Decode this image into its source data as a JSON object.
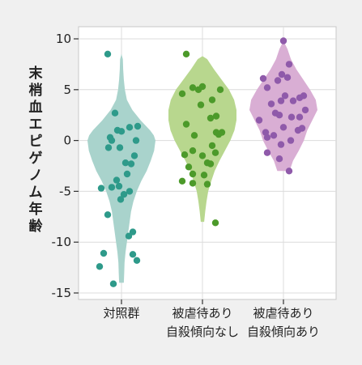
{
  "chart_data": {
    "type": "violin",
    "ylabel": "末梢血エピゲノム年齢",
    "ylim": [
      -15,
      10
    ],
    "yticks": [
      10,
      5,
      0,
      -5,
      -10,
      -15
    ],
    "ytick_labels": [
      "10",
      "5",
      "0",
      "-5",
      "-10",
      "-15"
    ],
    "grid": true,
    "categories": [
      [
        "対照群"
      ],
      [
        "被虐待あり",
        "自殺傾向なし"
      ],
      [
        "被虐待あり",
        "自殺傾向あり"
      ]
    ],
    "series": [
      {
        "violin_color": "#a9d3cc",
        "point_color": "#2e9a8a",
        "density": [
          [
            -14,
            0.07
          ],
          [
            -13,
            0.08
          ],
          [
            -12,
            0.09
          ],
          [
            -11,
            0.12
          ],
          [
            -10,
            0.16
          ],
          [
            -9,
            0.2
          ],
          [
            -8,
            0.24
          ],
          [
            -7,
            0.28
          ],
          [
            -6,
            0.35
          ],
          [
            -5,
            0.45
          ],
          [
            -4,
            0.58
          ],
          [
            -3,
            0.74
          ],
          [
            -2,
            0.86
          ],
          [
            -1,
            0.96
          ],
          [
            0,
            1.0
          ],
          [
            0.5,
            0.95
          ],
          [
            1,
            0.84
          ],
          [
            2,
            0.56
          ],
          [
            3,
            0.32
          ],
          [
            4,
            0.16
          ],
          [
            5,
            0.1
          ],
          [
            6,
            0.07
          ],
          [
            7,
            0.05
          ],
          [
            8,
            0.04
          ],
          [
            8.5,
            0.0
          ]
        ],
        "points": [
          [
            -0.17,
            8.5
          ],
          [
            -0.08,
            2.7
          ],
          [
            0.2,
            1.4
          ],
          [
            0.1,
            1.3
          ],
          [
            -0.05,
            1.0
          ],
          [
            0.0,
            0.9
          ],
          [
            -0.14,
            0.3
          ],
          [
            -0.12,
            0.0
          ],
          [
            0.18,
            0.0
          ],
          [
            -0.16,
            -0.7
          ],
          [
            -0.02,
            -0.7
          ],
          [
            0.16,
            -1.5
          ],
          [
            0.05,
            -2.2
          ],
          [
            0.12,
            -2.3
          ],
          [
            0.07,
            -3.3
          ],
          [
            -0.06,
            -3.9
          ],
          [
            -0.03,
            -4.5
          ],
          [
            -0.12,
            -4.6
          ],
          [
            -0.25,
            -4.7
          ],
          [
            0.1,
            -5.0
          ],
          [
            0.03,
            -5.3
          ],
          [
            -0.01,
            -5.8
          ],
          [
            -0.17,
            -7.3
          ],
          [
            0.14,
            -9.0
          ],
          [
            0.09,
            -9.4
          ],
          [
            -0.22,
            -11.1
          ],
          [
            0.14,
            -11.2
          ],
          [
            0.19,
            -11.8
          ],
          [
            -0.27,
            -12.4
          ],
          [
            -0.1,
            -14.1
          ]
        ]
      },
      {
        "violin_color": "#b8d78e",
        "point_color": "#4c9a2a",
        "density": [
          [
            -8,
            0.05
          ],
          [
            -7,
            0.08
          ],
          [
            -6,
            0.12
          ],
          [
            -5,
            0.17
          ],
          [
            -4,
            0.26
          ],
          [
            -3,
            0.36
          ],
          [
            -2,
            0.5
          ],
          [
            -1,
            0.66
          ],
          [
            0,
            0.82
          ],
          [
            1,
            0.94
          ],
          [
            2,
            1.0
          ],
          [
            3,
            1.0
          ],
          [
            4,
            0.93
          ],
          [
            5,
            0.78
          ],
          [
            6,
            0.56
          ],
          [
            7,
            0.34
          ],
          [
            8,
            0.14
          ],
          [
            8.3,
            0.0
          ]
        ],
        "points": [
          [
            -0.2,
            8.5
          ],
          [
            0.0,
            5.3
          ],
          [
            -0.12,
            5.2
          ],
          [
            -0.05,
            5.0
          ],
          [
            -0.25,
            4.6
          ],
          [
            0.22,
            5.0
          ],
          [
            0.12,
            4.0
          ],
          [
            -0.02,
            3.5
          ],
          [
            0.17,
            2.4
          ],
          [
            0.1,
            2.2
          ],
          [
            -0.2,
            1.6
          ],
          [
            0.24,
            0.8
          ],
          [
            0.17,
            0.8
          ],
          [
            0.2,
            0.6
          ],
          [
            -0.1,
            0.5
          ],
          [
            0.12,
            -0.5
          ],
          [
            -0.12,
            -1.0
          ],
          [
            0.16,
            -1.2
          ],
          [
            -0.22,
            -1.4
          ],
          [
            0.0,
            -1.5
          ],
          [
            0.06,
            -2.2
          ],
          [
            0.1,
            -2.3
          ],
          [
            -0.17,
            -2.6
          ],
          [
            -0.12,
            -3.3
          ],
          [
            0.02,
            -3.4
          ],
          [
            -0.25,
            -4.0
          ],
          [
            -0.12,
            -4.2
          ],
          [
            0.06,
            -4.3
          ],
          [
            0.16,
            -8.1
          ]
        ]
      },
      {
        "violin_color": "#d9aed4",
        "point_color": "#8f5aaa",
        "density": [
          [
            -3,
            0.18
          ],
          [
            -2,
            0.28
          ],
          [
            -1,
            0.45
          ],
          [
            0,
            0.6
          ],
          [
            1,
            0.7
          ],
          [
            2,
            0.85
          ],
          [
            3,
            1.0
          ],
          [
            4,
            0.95
          ],
          [
            5,
            0.78
          ],
          [
            6,
            0.58
          ],
          [
            7,
            0.38
          ],
          [
            8,
            0.22
          ],
          [
            9,
            0.12
          ],
          [
            9.8,
            0.0
          ]
        ],
        "points": [
          [
            0.0,
            9.8
          ],
          [
            0.07,
            7.5
          ],
          [
            -0.02,
            6.5
          ],
          [
            0.05,
            6.2
          ],
          [
            -0.25,
            6.1
          ],
          [
            -0.07,
            5.9
          ],
          [
            -0.2,
            5.2
          ],
          [
            0.2,
            4.2
          ],
          [
            0.25,
            4.4
          ],
          [
            0.02,
            4.4
          ],
          [
            0.12,
            3.9
          ],
          [
            -0.03,
            3.9
          ],
          [
            -0.15,
            3.6
          ],
          [
            0.27,
            3.0
          ],
          [
            -0.1,
            2.7
          ],
          [
            -0.05,
            2.5
          ],
          [
            0.1,
            2.3
          ],
          [
            0.2,
            2.3
          ],
          [
            -0.3,
            2.0
          ],
          [
            0.0,
            1.3
          ],
          [
            0.23,
            1.2
          ],
          [
            -0.22,
            0.8
          ],
          [
            0.18,
            1.0
          ],
          [
            -0.12,
            0.5
          ],
          [
            -0.2,
            0.3
          ],
          [
            0.09,
            0.0
          ],
          [
            -0.03,
            -0.4
          ],
          [
            -0.2,
            -1.2
          ],
          [
            -0.05,
            -1.8
          ],
          [
            0.07,
            -3.0
          ]
        ]
      }
    ]
  }
}
